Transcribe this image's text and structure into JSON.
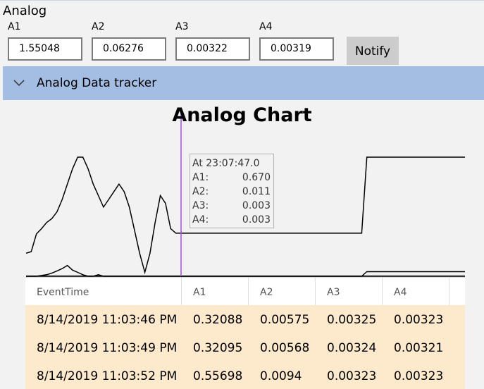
{
  "app": {
    "title": "Analog"
  },
  "fields": [
    {
      "label": "A1",
      "value": "1.55048"
    },
    {
      "label": "A2",
      "value": "0.06276"
    },
    {
      "label": "A3",
      "value": "0.00322"
    },
    {
      "label": "A4",
      "value": "0.00319"
    }
  ],
  "notify_label": "Notify",
  "expander": {
    "title": "Analog Data tracker",
    "icon": "chevron-down-icon"
  },
  "chart": {
    "title": "Analog Chart",
    "tooltip": {
      "time": "At 23:07:47.0",
      "rows": [
        {
          "name": "A1:",
          "value": "0.670"
        },
        {
          "name": "A2:",
          "value": "0.011"
        },
        {
          "name": "A3:",
          "value": "0.003"
        },
        {
          "name": "A4:",
          "value": "0.003"
        }
      ]
    },
    "cursor_color": "#a24ce0"
  },
  "chart_data": {
    "type": "line",
    "title": "Analog Chart",
    "ylim": [
      0,
      1.55
    ],
    "series": [
      {
        "name": "A1",
        "values": [
          0.3,
          0.32,
          0.55,
          0.62,
          0.7,
          0.75,
          0.84,
          1.0,
          1.2,
          1.4,
          1.55,
          1.55,
          1.4,
          1.2,
          1.05,
          0.9,
          1.0,
          1.1,
          1.2,
          1.1,
          0.9,
          0.6,
          0.3,
          0.05,
          0.3,
          0.7,
          1.05,
          0.95,
          0.62,
          0.56,
          0.56,
          0.56,
          0.56,
          0.56,
          0.56,
          0.56,
          0.56,
          0.56,
          0.56,
          0.56,
          0.56,
          0.56,
          0.56,
          0.56,
          0.56,
          0.56,
          0.56,
          0.56,
          0.56,
          0.56,
          0.56,
          0.56,
          0.56,
          0.56,
          0.56,
          0.56,
          0.56,
          0.56,
          0.56,
          0.56,
          0.56,
          0.56,
          0.56,
          0.56,
          0.56,
          0.56,
          1.55,
          1.55,
          1.55,
          1.55,
          1.55,
          1.55,
          1.55,
          1.55,
          1.55,
          1.55,
          1.55,
          1.55,
          1.55,
          1.55,
          1.55,
          1.55,
          1.55,
          1.55,
          1.55,
          1.55
        ]
      },
      {
        "name": "A2",
        "values": [
          0.0,
          0.0,
          0.0,
          0.01,
          0.02,
          0.04,
          0.07,
          0.1,
          0.14,
          0.08,
          0.05,
          0.02,
          0.0,
          0.0,
          0.02,
          0.0,
          0.0,
          0.0,
          0.0,
          0.0,
          0.0,
          0.0,
          0.0,
          0.0,
          0.0,
          0.0,
          0.0,
          0.0,
          0.0,
          0.0,
          0.0,
          0.0,
          0.0,
          0.0,
          0.0,
          0.0,
          0.0,
          0.0,
          0.0,
          0.0,
          0.0,
          0.0,
          0.0,
          0.0,
          0.0,
          0.0,
          0.0,
          0.0,
          0.0,
          0.0,
          0.0,
          0.0,
          0.0,
          0.0,
          0.0,
          0.0,
          0.0,
          0.0,
          0.0,
          0.0,
          0.0,
          0.0,
          0.0,
          0.0,
          0.0,
          0.0,
          0.06,
          0.06,
          0.06,
          0.06,
          0.06,
          0.06,
          0.06,
          0.06,
          0.06,
          0.06,
          0.06,
          0.06,
          0.06,
          0.06,
          0.06,
          0.06,
          0.06,
          0.06,
          0.06,
          0.06
        ]
      },
      {
        "name": "A3",
        "values": [
          0.003,
          0.003,
          0.003,
          0.003,
          0.003,
          0.003,
          0.003,
          0.003,
          0.003,
          0.003,
          0.003,
          0.003,
          0.003,
          0.003,
          0.003,
          0.003,
          0.003,
          0.003,
          0.003,
          0.003,
          0.003,
          0.003,
          0.003,
          0.003,
          0.003,
          0.003,
          0.003,
          0.003,
          0.003,
          0.003,
          0.003,
          0.003,
          0.003,
          0.003,
          0.003,
          0.003,
          0.003,
          0.003,
          0.003,
          0.003,
          0.003,
          0.003,
          0.003,
          0.003,
          0.003,
          0.003,
          0.003,
          0.003,
          0.003,
          0.003,
          0.003,
          0.003,
          0.003,
          0.003,
          0.003,
          0.003,
          0.003,
          0.003,
          0.003,
          0.003,
          0.003,
          0.003,
          0.003,
          0.003,
          0.003,
          0.003,
          0.003,
          0.003,
          0.003,
          0.003,
          0.003,
          0.003,
          0.003,
          0.003,
          0.003,
          0.003,
          0.003,
          0.003,
          0.003,
          0.003,
          0.003,
          0.003,
          0.003,
          0.003,
          0.003,
          0.003
        ]
      },
      {
        "name": "A4",
        "values": [
          0.003,
          0.003,
          0.003,
          0.003,
          0.003,
          0.003,
          0.003,
          0.003,
          0.003,
          0.003,
          0.003,
          0.003,
          0.003,
          0.003,
          0.003,
          0.003,
          0.003,
          0.003,
          0.003,
          0.003,
          0.003,
          0.003,
          0.003,
          0.003,
          0.003,
          0.003,
          0.003,
          0.003,
          0.003,
          0.003,
          0.003,
          0.003,
          0.003,
          0.003,
          0.003,
          0.003,
          0.003,
          0.003,
          0.003,
          0.003,
          0.003,
          0.003,
          0.003,
          0.003,
          0.003,
          0.003,
          0.003,
          0.003,
          0.003,
          0.003,
          0.003,
          0.003,
          0.003,
          0.003,
          0.003,
          0.003,
          0.003,
          0.003,
          0.003,
          0.003,
          0.003,
          0.003,
          0.003,
          0.003,
          0.003,
          0.003,
          0.003,
          0.003,
          0.003,
          0.003,
          0.003,
          0.003,
          0.003,
          0.003,
          0.003,
          0.003,
          0.003,
          0.003,
          0.003,
          0.003,
          0.003,
          0.003,
          0.003,
          0.003,
          0.003,
          0.003
        ]
      }
    ]
  },
  "grid": {
    "columns": [
      "EventTime",
      "A1",
      "A2",
      "A3",
      "A4"
    ],
    "rows": [
      [
        "8/14/2019 11:03:46 PM",
        "0.32088",
        "0.00575",
        "0.00325",
        "0.00323"
      ],
      [
        "8/14/2019 11:03:49 PM",
        "0.32095",
        "0.00568",
        "0.00324",
        "0.00321"
      ],
      [
        "8/14/2019 11:03:52 PM",
        "0.55698",
        "0.0094",
        "0.00323",
        "0.00323"
      ]
    ],
    "row_color": "#fde9cc"
  }
}
